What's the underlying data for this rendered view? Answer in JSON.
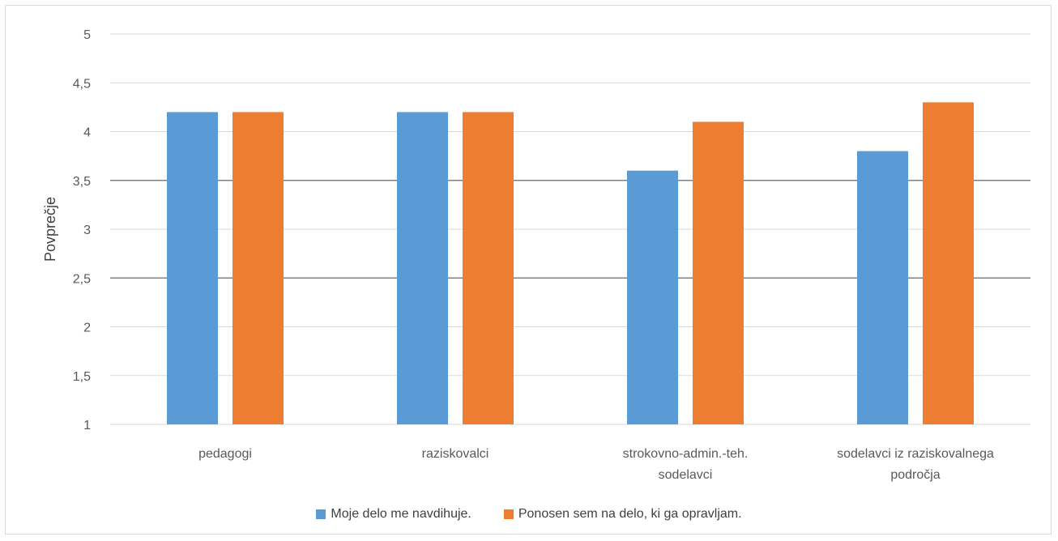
{
  "chart_data": {
    "type": "bar",
    "categories": [
      [
        "pedagogi"
      ],
      [
        "raziskovalci"
      ],
      [
        "strokovno-admin.-teh.",
        "sodelavci"
      ],
      [
        "sodelavci iz raziskovalnega",
        "področja"
      ]
    ],
    "series": [
      {
        "name": "Moje delo me navdihuje.",
        "color": "#5b9bd5",
        "values": [
          4.2,
          4.2,
          3.6,
          3.8
        ]
      },
      {
        "name": "Ponosen sem na delo, ki ga opravljam.",
        "color": "#ed7d31",
        "values": [
          4.2,
          4.2,
          4.1,
          4.3
        ]
      }
    ],
    "ylabel": "Povprečje",
    "xlabel": "",
    "ylim": [
      1,
      5
    ],
    "yticks": [
      "1",
      "1,5",
      "2",
      "2,5",
      "3",
      "3,5",
      "4",
      "4,5",
      "5"
    ],
    "highlighted_gridlines": [
      2.5,
      3.5
    ],
    "grid": true,
    "legend_position": "bottom"
  }
}
